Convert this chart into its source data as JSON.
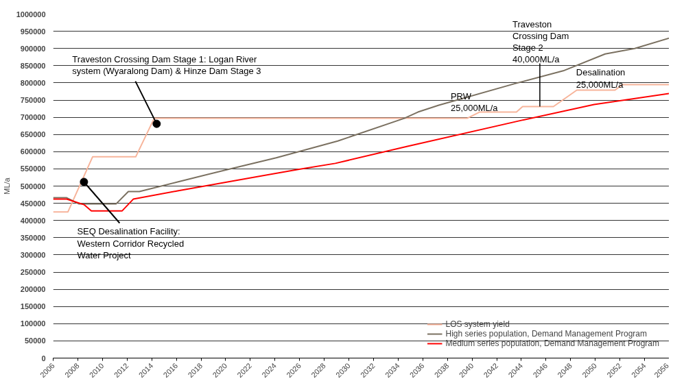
{
  "chart_data": {
    "type": "line",
    "ylabel": "ML/a",
    "xlim": [
      2006,
      2056
    ],
    "xticks": [
      2006,
      2008,
      2010,
      2012,
      2014,
      2016,
      2018,
      2020,
      2022,
      2024,
      2026,
      2028,
      2030,
      2032,
      2034,
      2036,
      2038,
      2040,
      2042,
      2044,
      2046,
      2048,
      2050,
      2052,
      2054,
      2056
    ],
    "ylim": [
      0,
      1000000
    ],
    "yticks": [
      0,
      50000,
      100000,
      150000,
      200000,
      250000,
      300000,
      350000,
      400000,
      450000,
      500000,
      550000,
      600000,
      650000,
      700000,
      750000,
      800000,
      850000,
      900000,
      950000,
      1000000
    ],
    "grid": "y",
    "legend": "bottom right",
    "line_style": "solid",
    "marker": "none",
    "series": [
      {
        "name": "LOS system yield",
        "color": "#f7b49a",
        "x": [
          2006,
          2007.2,
          2009.2,
          2012.7,
          2014.2,
          2039.6,
          2040.6,
          2043.6,
          2044.1,
          2046.6,
          2048.5,
          2051.6,
          2052.2,
          2056
        ],
        "values": [
          425000,
          425000,
          585000,
          585000,
          697000,
          697000,
          715000,
          715000,
          731000,
          731000,
          779000,
          779000,
          795000,
          795000
        ]
      },
      {
        "name": "High series population, Demand Management Program",
        "color": "#7a7060",
        "x": [
          2006,
          2007.1,
          2008.1,
          2011.1,
          2012.1,
          2013.0,
          2016.1,
          2019.9,
          2024.1,
          2029.1,
          2034.5,
          2035.6,
          2037.3,
          2043.6,
          2047.4,
          2050.8,
          2053.2,
          2056
        ],
        "values": [
          466000,
          466000,
          448000,
          448000,
          484000,
          484000,
          512000,
          546000,
          582000,
          631000,
          697000,
          715000,
          735000,
          799000,
          835000,
          884000,
          900000,
          930000
        ]
      },
      {
        "name": "Medium series population, Demand Management Program",
        "color": "#ff0000",
        "x": [
          2006,
          2007.1,
          2008.5,
          2009.1,
          2011.6,
          2012.5,
          2016.1,
          2025.8,
          2028.9,
          2034.7,
          2044.0,
          2049.9,
          2056
        ],
        "values": [
          462000,
          462000,
          446000,
          428000,
          428000,
          462000,
          486000,
          548000,
          566000,
          615000,
          691000,
          737000,
          769000
        ]
      }
    ],
    "annotations": [
      {
        "text": "Traveston Crossing Dam Stage 1: Logan River\nsystem (Wyaralong Dam) & Hinze Dam Stage 3",
        "x": 2014.4,
        "y": 681000
      },
      {
        "text": "SEQ Desalination Facility:\nWestern Corridor Recycled\nWater Project",
        "x": 2008.5,
        "y": 512000
      },
      {
        "text": "Traveston\nCrossing Dam\nStage 2\n40,000ML/a",
        "x": 2045.5,
        "y": 731000
      },
      {
        "text": "PRW\n25,000ML/a",
        "x": 2040.6,
        "y": 715000
      },
      {
        "text": "Desalination\n25,000ML/a",
        "x": 2048.5,
        "y": 779000
      }
    ]
  }
}
